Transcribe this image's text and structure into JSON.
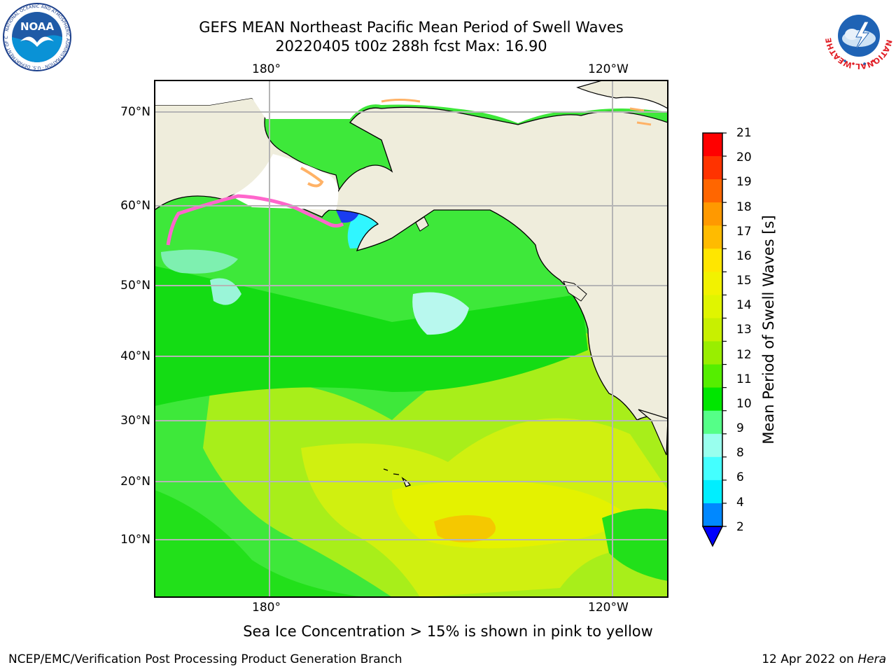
{
  "header": {
    "title_line1": "GEFS MEAN Northeast Pacific Mean Period of Swell Waves",
    "title_line2": "20220405 t00z 288h fcst   Max: 16.90"
  },
  "logos": {
    "noaa": {
      "icon": "noaa-logo",
      "ring_text": "NATIONAL OCEANIC AND ATMOSPHERIC ADMINISTRATION · U.S. DEPARTMENT OF COMMERCE",
      "center_text": "NOAA"
    },
    "nws": {
      "icon": "nws-logo",
      "ring_text": "NATIONAL WEATHER SERVICE"
    }
  },
  "map": {
    "top_lon_labels": [
      "180°",
      "120°W"
    ],
    "bottom_lon_labels": [
      "180°",
      "120°W"
    ],
    "lat_labels": [
      "70°N",
      "60°N",
      "50°N",
      "40°N",
      "30°N",
      "20°N",
      "10°N"
    ],
    "land_color": "#efeddc",
    "ice_colors": [
      "#ff66cc",
      "#ffb266",
      "#ffe066"
    ]
  },
  "colorbar": {
    "label": "Mean Period of Swell Waves [s]",
    "ticks": [
      "21",
      "20",
      "19",
      "18",
      "17",
      "16",
      "15",
      "14",
      "13",
      "12",
      "11",
      "10",
      "9",
      "8",
      "6",
      "4",
      "2"
    ],
    "colors": [
      "#ff0000",
      "#ff3300",
      "#ff6600",
      "#ff9900",
      "#ffbb00",
      "#ffe600",
      "#f2f200",
      "#e0f500",
      "#c8f000",
      "#99ee00",
      "#55ee00",
      "#00e600",
      "#55ff88",
      "#99ffee",
      "#44ffff",
      "#00eeff",
      "#0088ff"
    ],
    "under_color": "#0000ff"
  },
  "footer": {
    "note": "Sea Ice Concentration > 15% is shown in pink to yellow",
    "left": "NCEP/EMC/Verification Post Processing Product Generation Branch",
    "right_date": "12 Apr 2022 on ",
    "right_host": "Hera"
  }
}
